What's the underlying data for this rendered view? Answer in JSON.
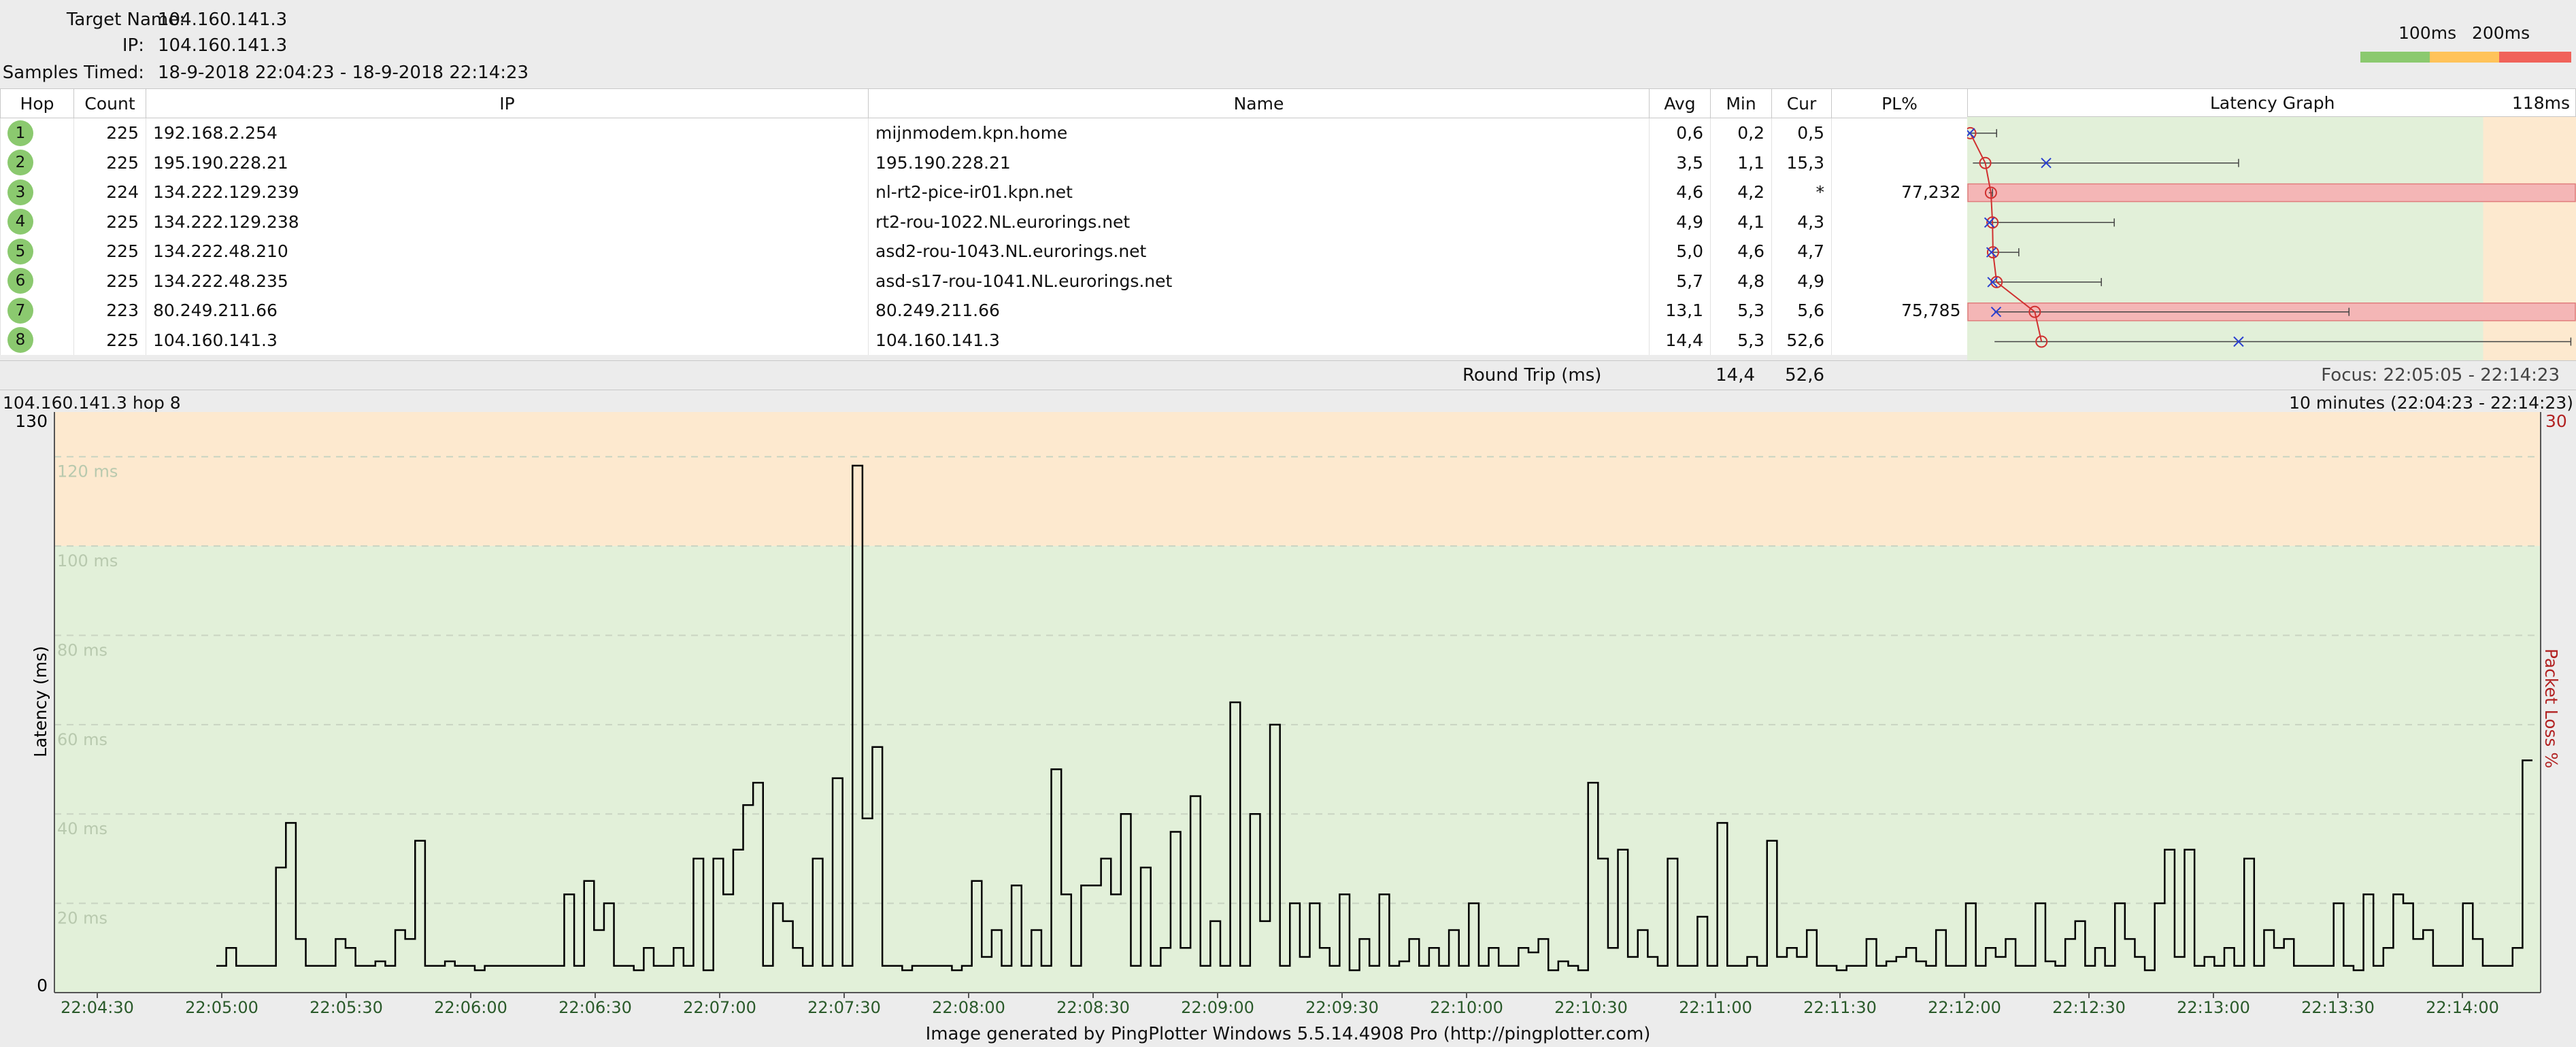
{
  "header": {
    "target_name_label": "Target Name:",
    "target_name": "104.160.141.3",
    "ip_label": "IP:",
    "ip": "104.160.141.3",
    "samples_label": "Samples Timed:",
    "samples": "18-9-2018 22:04:23 - 18-9-2018 22:14:23"
  },
  "legend": {
    "label_100": "100ms",
    "label_200": "200ms",
    "colors": [
      "#8bc96f",
      "#ffc35a",
      "#f0625a"
    ]
  },
  "table": {
    "columns": {
      "hop": "Hop",
      "count": "Count",
      "ip": "IP",
      "name": "Name",
      "avg": "Avg",
      "min": "Min",
      "cur": "Cur",
      "pl": "PL%",
      "latency_graph": "Latency Graph",
      "latency_max": "118ms"
    },
    "rows": [
      {
        "hop": "1",
        "count": "225",
        "ip": "192.168.2.254",
        "name": "mijnmodem.kpn.home",
        "avg": "0,6",
        "min": "0,2",
        "cur": "0,5",
        "pl": ""
      },
      {
        "hop": "2",
        "count": "225",
        "ip": "195.190.228.21",
        "name": "195.190.228.21",
        "avg": "3,5",
        "min": "1,1",
        "cur": "15,3",
        "pl": ""
      },
      {
        "hop": "3",
        "count": "224",
        "ip": "134.222.129.239",
        "name": "nl-rt2-pice-ir01.kpn.net",
        "avg": "4,6",
        "min": "4,2",
        "cur": "*",
        "pl": "77,232"
      },
      {
        "hop": "4",
        "count": "225",
        "ip": "134.222.129.238",
        "name": "rt2-rou-1022.NL.eurorings.net",
        "avg": "4,9",
        "min": "4,1",
        "cur": "4,3",
        "pl": ""
      },
      {
        "hop": "5",
        "count": "225",
        "ip": "134.222.48.210",
        "name": "asd2-rou-1043.NL.eurorings.net",
        "avg": "5,0",
        "min": "4,6",
        "cur": "4,7",
        "pl": ""
      },
      {
        "hop": "6",
        "count": "225",
        "ip": "134.222.48.235",
        "name": "asd-s17-rou-1041.NL.eurorings.net",
        "avg": "5,7",
        "min": "4,8",
        "cur": "4,9",
        "pl": ""
      },
      {
        "hop": "7",
        "count": "223",
        "ip": "80.249.211.66",
        "name": "80.249.211.66",
        "avg": "13,1",
        "min": "5,3",
        "cur": "5,6",
        "pl": "75,785"
      },
      {
        "hop": "8",
        "count": "225",
        "ip": "104.160.141.3",
        "name": "104.160.141.3",
        "avg": "14,4",
        "min": "5,3",
        "cur": "52,6",
        "pl": ""
      }
    ]
  },
  "latency_mini": {
    "max_ms": 118,
    "green_until_ms": 100,
    "hops": [
      {
        "avg": 0.6,
        "min": 0.2,
        "max": 5.7,
        "cur": 0.5,
        "loss": false
      },
      {
        "avg": 3.5,
        "min": 1.1,
        "max": 52.6,
        "cur": 15.3,
        "loss": false
      },
      {
        "avg": 4.6,
        "min": 4.2,
        "max": 4.9,
        "cur": null,
        "loss": true
      },
      {
        "avg": 4.9,
        "min": 4.1,
        "max": 28.5,
        "cur": 4.3,
        "loss": false
      },
      {
        "avg": 5.0,
        "min": 4.6,
        "max": 10.0,
        "cur": 4.7,
        "loss": false
      },
      {
        "avg": 5.7,
        "min": 4.8,
        "max": 26.0,
        "cur": 4.9,
        "loss": false
      },
      {
        "avg": 13.1,
        "min": 5.3,
        "max": 74.0,
        "cur": 5.6,
        "loss": true
      },
      {
        "avg": 14.4,
        "min": 5.3,
        "max": 117.0,
        "cur": 52.6,
        "loss": false
      }
    ]
  },
  "round_trip": {
    "label": "Round Trip (ms)",
    "avg": "14,4",
    "cur": "52,6",
    "focus": "Focus: 22:05:05 - 22:14:23"
  },
  "graph": {
    "title": "104.160.141.3 hop 8",
    "range": "10 minutes (22:04:23 - 22:14:23)",
    "y_axis_label": "Latency (ms)",
    "right_axis_label": "Packet Loss %",
    "right_max": "30",
    "y_max_label": "130",
    "y_min_label": "0",
    "grid_labels": [
      "120 ms",
      "100 ms",
      "80 ms",
      "60 ms",
      "40 ms",
      "20 ms"
    ],
    "x_ticks": [
      "22:04:30",
      "22:05:00",
      "22:05:30",
      "22:06:00",
      "22:06:30",
      "22:07:00",
      "22:07:30",
      "22:08:00",
      "22:08:30",
      "22:09:00",
      "22:09:30",
      "22:10:00",
      "22:10:30",
      "22:11:00",
      "22:11:30",
      "22:12:00",
      "22:12:30",
      "22:13:00",
      "22:13:30",
      "22:14:00"
    ],
    "colors": {
      "green": "#e2f0d9",
      "orange": "#fde9cf"
    }
  },
  "chart_data": {
    "type": "line",
    "title": "104.160.141.3 hop 8",
    "xlabel": "",
    "ylabel": "Latency (ms)",
    "ylim": [
      0,
      130
    ],
    "x_start": "22:04:23",
    "x_end": "22:14:23",
    "grid": true,
    "series": [
      {
        "values": [
          6,
          10,
          6,
          6,
          6,
          6,
          28,
          38,
          12,
          6,
          6,
          6,
          12,
          10,
          6,
          6,
          7,
          6,
          14,
          12,
          34,
          6,
          6,
          7,
          6,
          6,
          5,
          6,
          6,
          6,
          6,
          6,
          6,
          6,
          6,
          22,
          6,
          25,
          14,
          20,
          6,
          6,
          5,
          10,
          6,
          6,
          10,
          6,
          30,
          5,
          30,
          22,
          32,
          42,
          47,
          6,
          20,
          16,
          10,
          6,
          30,
          6,
          48,
          6,
          118,
          39,
          55,
          6,
          6,
          5,
          6,
          6,
          6,
          6,
          5,
          6,
          25,
          8,
          14,
          6,
          24,
          6,
          14,
          6,
          50,
          22,
          6,
          24,
          24,
          30,
          22,
          40,
          6,
          28,
          6,
          10,
          36,
          10,
          44,
          6,
          16,
          6,
          65,
          6,
          40,
          16,
          60,
          6,
          20,
          8,
          20,
          10,
          6,
          22,
          5,
          12,
          6,
          22,
          6,
          7,
          12,
          6,
          10,
          6,
          14,
          6,
          20,
          6,
          10,
          6,
          6,
          10,
          9,
          12,
          5,
          7,
          6,
          5,
          47,
          30,
          10,
          32,
          8,
          14,
          8,
          6,
          30,
          6,
          6,
          17,
          6,
          38,
          6,
          6,
          8,
          6,
          34,
          8,
          10,
          8,
          14,
          6,
          6,
          5,
          6,
          6,
          12,
          6,
          7,
          8,
          10,
          7,
          6,
          14,
          6,
          6,
          20,
          6,
          10,
          8,
          12,
          6,
          6,
          20,
          7,
          6,
          12,
          16,
          6,
          10,
          6,
          20,
          12,
          8,
          5,
          20,
          32,
          8,
          32,
          6,
          8,
          6,
          10,
          6,
          30,
          6,
          14,
          10,
          12,
          6,
          6,
          6,
          6,
          20,
          6,
          5,
          22,
          6,
          10,
          22,
          20,
          12,
          14,
          6,
          6,
          6,
          20,
          12,
          6,
          6,
          6,
          10,
          52
        ]
      }
    ]
  }
}
